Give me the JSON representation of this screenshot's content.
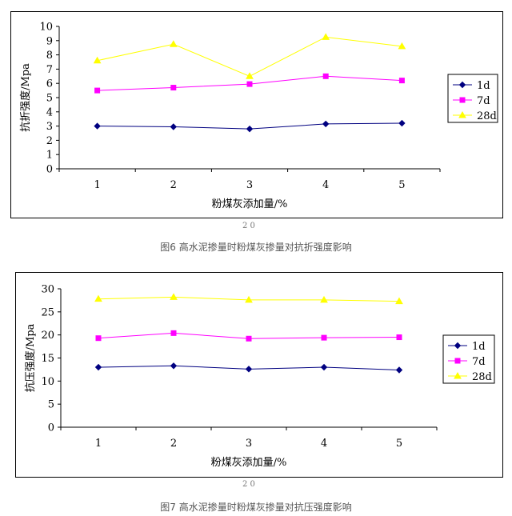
{
  "chart_data": [
    {
      "type": "line",
      "caption": "图6 高水泥掺量时粉煤灰掺量对抗折强度影响",
      "xlabel": "粉煤灰添加量/%",
      "ylabel": "抗折强度/Mpa",
      "categories": [
        "1",
        "2",
        "3",
        "4",
        "5"
      ],
      "ylim": [
        0,
        10
      ],
      "yticks": [
        "0",
        "1",
        "2",
        "3",
        "4",
        "5",
        "6",
        "7",
        "8",
        "9",
        "10"
      ],
      "grid": false,
      "legend_position": "right",
      "series": [
        {
          "name": "1d",
          "values": [
            3.0,
            2.95,
            2.8,
            3.15,
            3.2
          ],
          "color": "#000080",
          "marker": "diamond"
        },
        {
          "name": "7d",
          "values": [
            5.5,
            5.7,
            5.95,
            6.5,
            6.2
          ],
          "color": "#ff00ff",
          "marker": "square"
        },
        {
          "name": "28d",
          "values": [
            7.6,
            8.75,
            6.5,
            9.25,
            8.6
          ],
          "color": "#ffff00",
          "marker": "triangle"
        }
      ],
      "stray_mark": "2 0"
    },
    {
      "type": "line",
      "caption": "图7 高水泥掺量时粉煤灰掺量对抗压强度影响",
      "xlabel": "粉煤灰添加量/%",
      "ylabel": "抗压强度/Mpa",
      "categories": [
        "1",
        "2",
        "3",
        "4",
        "5"
      ],
      "ylim": [
        0,
        30
      ],
      "yticks": [
        "0",
        "5",
        "10",
        "15",
        "20",
        "25",
        "30"
      ],
      "grid": false,
      "legend_position": "right",
      "series": [
        {
          "name": "1d",
          "values": [
            13.0,
            13.3,
            12.6,
            13.0,
            12.4
          ],
          "color": "#000080",
          "marker": "diamond"
        },
        {
          "name": "7d",
          "values": [
            19.3,
            20.4,
            19.2,
            19.4,
            19.5
          ],
          "color": "#ff00ff",
          "marker": "square"
        },
        {
          "name": "28d",
          "values": [
            27.8,
            28.2,
            27.6,
            27.6,
            27.3
          ],
          "color": "#ffff00",
          "marker": "triangle"
        }
      ],
      "stray_mark": "2 0"
    }
  ]
}
